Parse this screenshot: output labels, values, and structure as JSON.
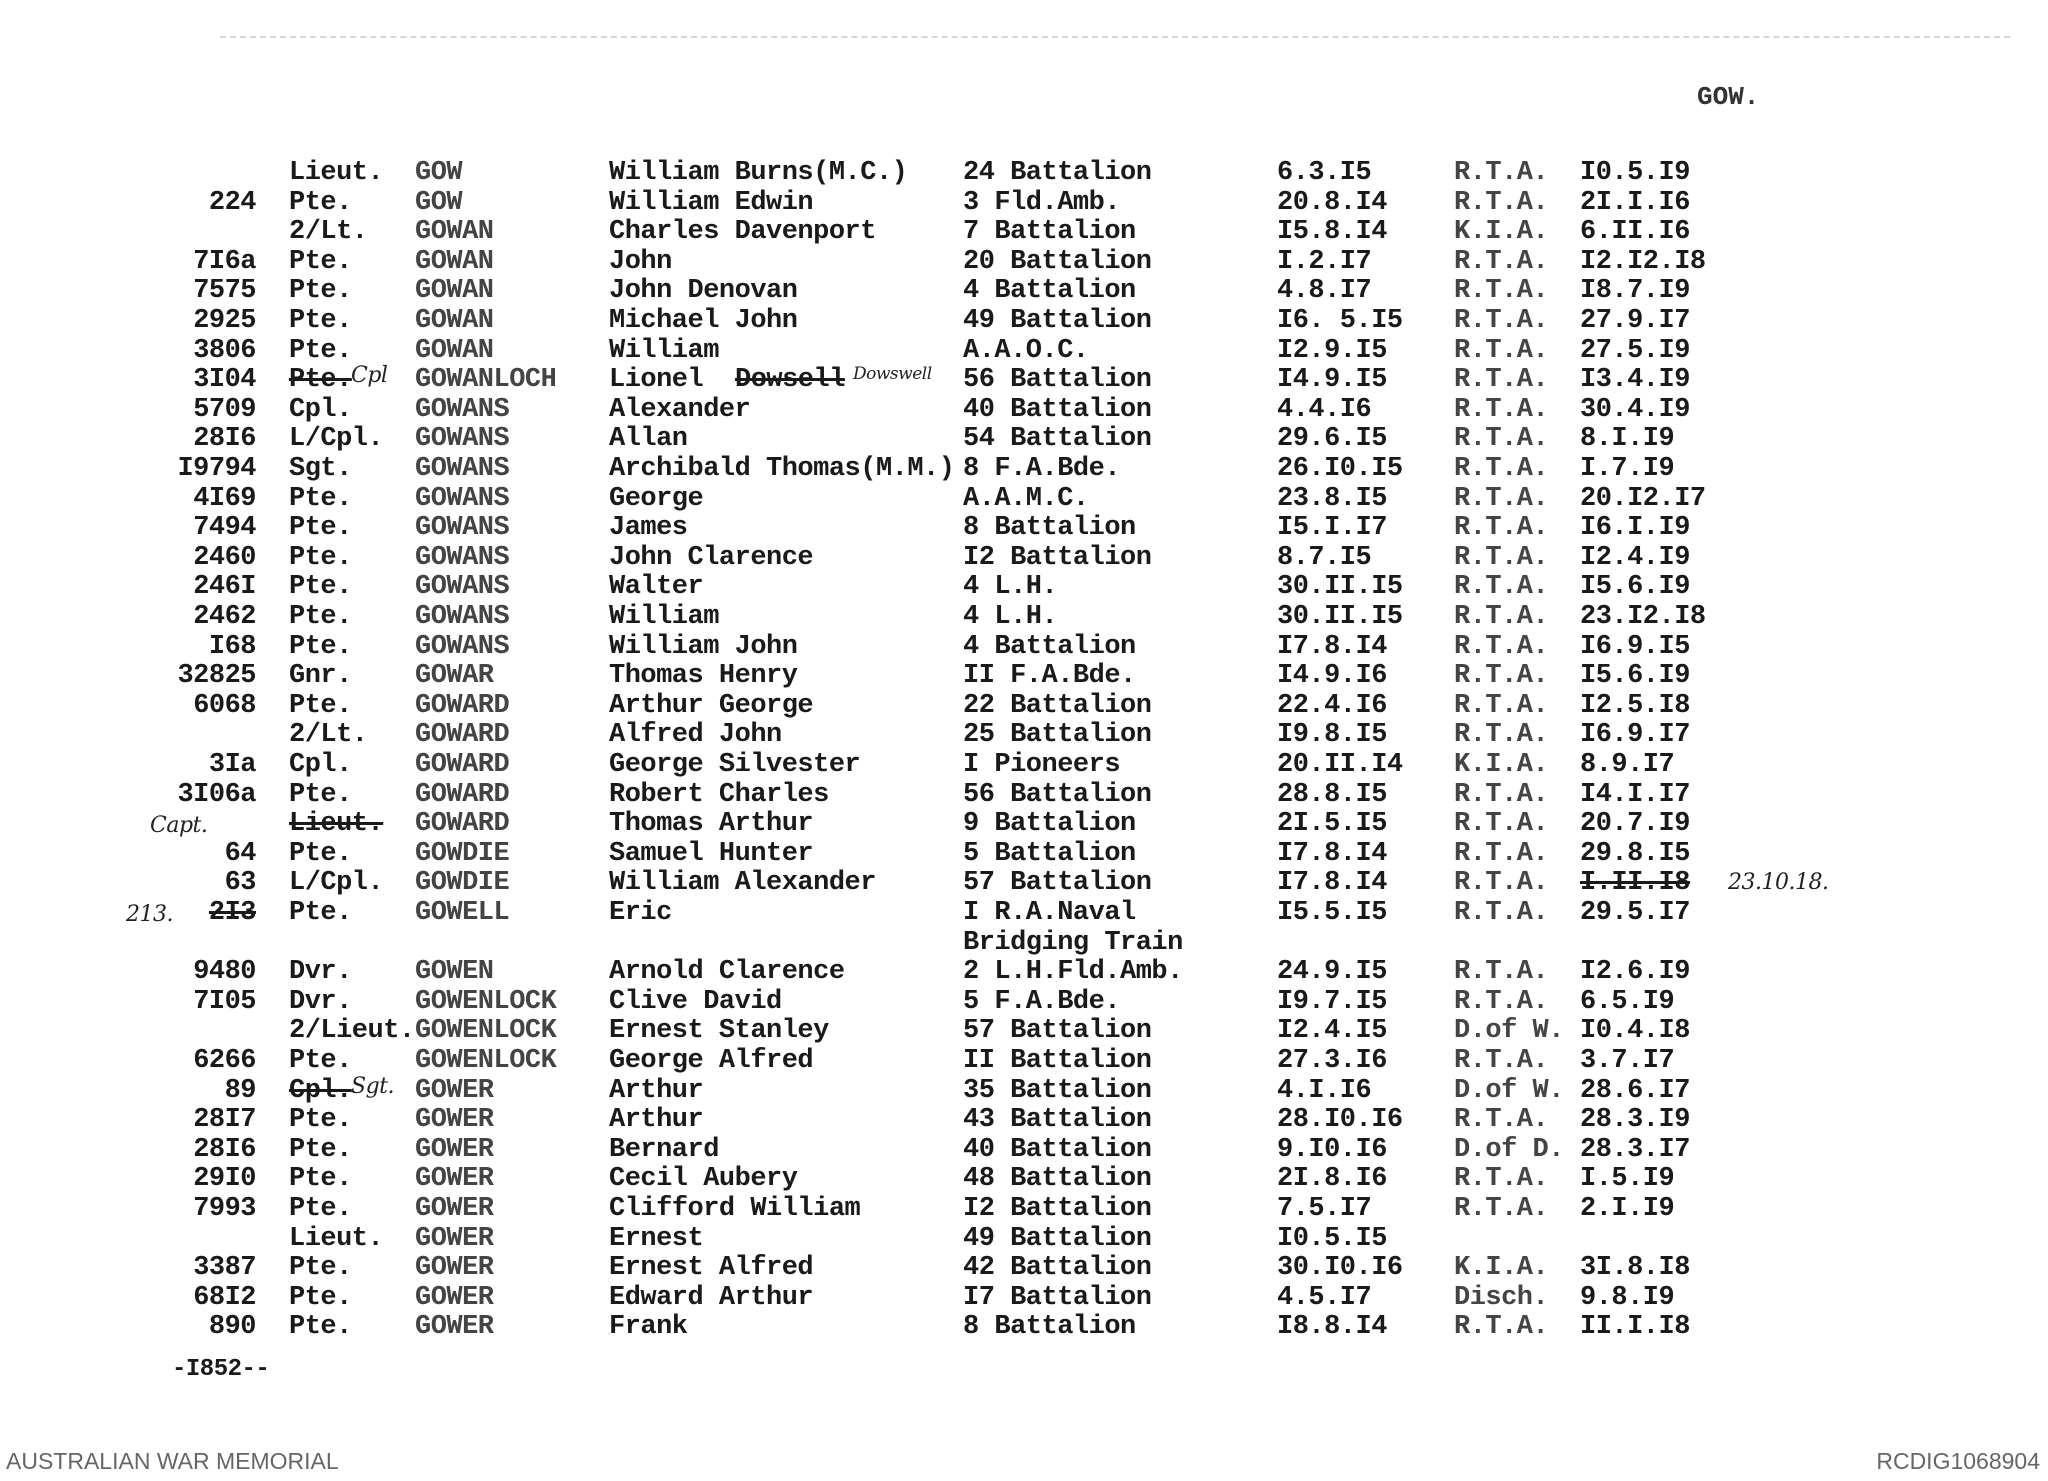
{
  "header": {
    "index_label": "GOW."
  },
  "rows": [
    {
      "num": "",
      "rank": "Lieut.",
      "surname": "GOW",
      "given": "William Burns(M.C.)",
      "unit": "24 Battalion",
      "enlisted": "6.3.I5",
      "fate": "R.T.A.",
      "date": "I0.5.I9"
    },
    {
      "num": "224",
      "rank": "Pte.",
      "surname": "GOW",
      "given": "William Edwin",
      "unit": "3 Fld.Amb.",
      "enlisted": "20.8.I4",
      "fate": "R.T.A.",
      "date": "2I.I.I6"
    },
    {
      "num": "",
      "rank": "2/Lt.",
      "surname": "GOWAN",
      "given": "Charles Davenport",
      "unit": "7 Battalion",
      "enlisted": "I5.8.I4",
      "fate": "K.I.A.",
      "date": "6.II.I6"
    },
    {
      "num": "7I6a",
      "rank": "Pte.",
      "surname": "GOWAN",
      "given": "John",
      "unit": "20 Battalion",
      "enlisted": "I.2.I7",
      "fate": "R.T.A.",
      "date": "I2.I2.I8"
    },
    {
      "num": "7575",
      "rank": "Pte.",
      "surname": "GOWAN",
      "given": "John Denovan",
      "unit": "4 Battalion",
      "enlisted": "4.8.I7",
      "fate": "R.T.A.",
      "date": "I8.7.I9"
    },
    {
      "num": "2925",
      "rank": "Pte.",
      "surname": "GOWAN",
      "given": "Michael John",
      "unit": "49 Battalion",
      "enlisted": "I6. 5.I5",
      "fate": "R.T.A.",
      "date": "27.9.I7"
    },
    {
      "num": "3806",
      "rank": "Pte.",
      "surname": "GOWAN",
      "given": "William",
      "unit": "A.A.O.C.",
      "enlisted": "I2.9.I5",
      "fate": "R.T.A.",
      "date": "27.5.I9"
    },
    {
      "num": "3I04",
      "rank": "Pte.",
      "rank_struck": true,
      "rank_hw": "Cpl",
      "surname": "GOWANLOCH",
      "given": "Lionel",
      "given_struck": "Dowsell",
      "given_hw": "Dowswell",
      "unit": "56 Battalion",
      "enlisted": "I4.9.I5",
      "fate": "R.T.A.",
      "date": "I3.4.I9"
    },
    {
      "num": "5709",
      "rank": "Cpl.",
      "surname": "GOWANS",
      "given": "Alexander",
      "unit": "40 Battalion",
      "enlisted": "4.4.I6",
      "fate": "R.T.A.",
      "date": "30.4.I9"
    },
    {
      "num": "28I6",
      "rank": "L/Cpl.",
      "surname": "GOWANS",
      "given": "Allan",
      "unit": "54 Battalion",
      "enlisted": "29.6.I5",
      "fate": "R.T.A.",
      "date": "8.I.I9"
    },
    {
      "num": "I9794",
      "rank": "Sgt.",
      "surname": "GOWANS",
      "given": "Archibald Thomas(M.M.)",
      "unit": "8 F.A.Bde.",
      "enlisted": "26.I0.I5",
      "fate": "R.T.A.",
      "date": "I.7.I9"
    },
    {
      "num": "4I69",
      "rank": "Pte.",
      "surname": "GOWANS",
      "given": "George",
      "unit": "A.A.M.C.",
      "enlisted": "23.8.I5",
      "fate": "R.T.A.",
      "date": "20.I2.I7"
    },
    {
      "num": "7494",
      "rank": "Pte.",
      "surname": "GOWANS",
      "given": "James",
      "unit": "8 Battalion",
      "enlisted": "I5.I.I7",
      "fate": "R.T.A.",
      "date": "I6.I.I9"
    },
    {
      "num": "2460",
      "rank": "Pte.",
      "surname": "GOWANS",
      "given": "John Clarence",
      "unit": "I2 Battalion",
      "enlisted": "8.7.I5",
      "fate": "R.T.A.",
      "date": "I2.4.I9"
    },
    {
      "num": "246I",
      "rank": "Pte.",
      "surname": "GOWANS",
      "given": "Walter",
      "unit": "4 L.H.",
      "enlisted": "30.II.I5",
      "fate": "R.T.A.",
      "date": "I5.6.I9"
    },
    {
      "num": "2462",
      "rank": "Pte.",
      "surname": "GOWANS",
      "given": "William",
      "unit": "4 L.H.",
      "enlisted": "30.II.I5",
      "fate": "R.T.A.",
      "date": "23.I2.I8"
    },
    {
      "num": "I68",
      "rank": "Pte.",
      "surname": "GOWANS",
      "given": "William John",
      "unit": "4 Battalion",
      "enlisted": "I7.8.I4",
      "fate": "R.T.A.",
      "date": "I6.9.I5"
    },
    {
      "num": "32825",
      "rank": "Gnr.",
      "surname": "GOWAR",
      "given": "Thomas Henry",
      "unit": "II F.A.Bde.",
      "enlisted": "I4.9.I6",
      "fate": "R.T.A.",
      "date": "I5.6.I9"
    },
    {
      "num": "6068",
      "rank": "Pte.",
      "surname": "GOWARD",
      "given": "Arthur George",
      "unit": "22 Battalion",
      "enlisted": "22.4.I6",
      "fate": "R.T.A.",
      "date": "I2.5.I8"
    },
    {
      "num": "",
      "rank": "2/Lt.",
      "surname": "GOWARD",
      "given": "Alfred John",
      "unit": "25 Battalion",
      "enlisted": "I9.8.I5",
      "fate": "R.T.A.",
      "date": "I6.9.I7"
    },
    {
      "num": "3Ia",
      "rank": "Cpl.",
      "surname": "GOWARD",
      "given": "George Silvester",
      "unit": "I Pioneers",
      "enlisted": "20.II.I4",
      "fate": "K.I.A.",
      "date": "8.9.I7"
    },
    {
      "num": "3I06a",
      "rank": "Pte.",
      "surname": "GOWARD",
      "given": "Robert Charles",
      "unit": "56 Battalion",
      "enlisted": "28.8.I5",
      "fate": "R.T.A.",
      "date": "I4.I.I7"
    },
    {
      "num": "",
      "num_hw": "Capt.",
      "rank": "Lieut.",
      "rank_struck": true,
      "surname": "GOWARD",
      "given": "Thomas Arthur",
      "unit": "9 Battalion",
      "enlisted": "2I.5.I5",
      "fate": "R.T.A.",
      "date": "20.7.I9"
    },
    {
      "num": "64",
      "rank": "Pte.",
      "surname": "GOWDIE",
      "given": "Samuel Hunter",
      "unit": "5 Battalion",
      "enlisted": "I7.8.I4",
      "fate": "R.T.A.",
      "date": "29.8.I5"
    },
    {
      "num": "63",
      "rank": "L/Cpl.",
      "surname": "GOWDIE",
      "given": "William Alexander",
      "unit": "57 Battalion",
      "enlisted": "I7.8.I4",
      "fate": "R.T.A.",
      "date": "I.II.I8",
      "date_struck": true,
      "date_hw": "23.10.18."
    },
    {
      "num": "2I3",
      "num_struck": true,
      "num_hw": "213.",
      "rank": "Pte.",
      "surname": "GOWELL",
      "given": "Eric",
      "unit": "I R.A.Naval",
      "unit2": "Bridging Train",
      "enlisted": "I5.5.I5",
      "fate": "R.T.A.",
      "date": "29.5.I7"
    },
    {
      "num": "9480",
      "rank": "Dvr.",
      "surname": "GOWEN",
      "given": "Arnold Clarence",
      "unit": "2 L.H.Fld.Amb.",
      "enlisted": "24.9.I5",
      "fate": "R.T.A.",
      "date": "I2.6.I9"
    },
    {
      "num": "7I05",
      "rank": "Dvr.",
      "surname": "GOWENLOCK",
      "given": "Clive David",
      "unit": "5 F.A.Bde.",
      "enlisted": "I9.7.I5",
      "fate": "R.T.A.",
      "date": "6.5.I9"
    },
    {
      "num": "",
      "rank": "2/Lieut.",
      "surname": "GOWENLOCK",
      "given": "Ernest Stanley",
      "unit": "57 Battalion",
      "enlisted": "I2.4.I5",
      "fate": "D.of W.",
      "date": "I0.4.I8"
    },
    {
      "num": "6266",
      "rank": "Pte.",
      "surname": "GOWENLOCK",
      "given": "George Alfred",
      "unit": "II Battalion",
      "enlisted": "27.3.I6",
      "fate": "R.T.A.",
      "date": "3.7.I7"
    },
    {
      "num": "89",
      "rank": "Cpl.",
      "rank_struck": true,
      "rank_hw": "Sgt.",
      "surname": "GOWER",
      "given": "Arthur",
      "unit": "35 Battalion",
      "enlisted": "4.I.I6",
      "fate": "D.of W.",
      "date": "28.6.I7"
    },
    {
      "num": "28I7",
      "rank": "Pte.",
      "surname": "GOWER",
      "given": "Arthur",
      "unit": "43 Battalion",
      "enlisted": "28.I0.I6",
      "fate": "R.T.A.",
      "date": "28.3.I9"
    },
    {
      "num": "28I6",
      "rank": "Pte.",
      "surname": "GOWER",
      "given": "Bernard",
      "unit": "40 Battalion",
      "enlisted": "9.I0.I6",
      "fate": "D.of D.",
      "date": "28.3.I7"
    },
    {
      "num": "29I0",
      "rank": "Pte.",
      "surname": "GOWER",
      "given": "Cecil Aubery",
      "unit": "48 Battalion",
      "enlisted": "2I.8.I6",
      "fate": "R.T.A.",
      "date": "I.5.I9"
    },
    {
      "num": "7993",
      "rank": "Pte.",
      "surname": "GOWER",
      "given": "Clifford William",
      "unit": "I2 Battalion",
      "enlisted": "7.5.I7",
      "fate": "R.T.A.",
      "date": "2.I.I9"
    },
    {
      "num": "",
      "rank": "Lieut.",
      "surname": "GOWER",
      "given": "Ernest",
      "unit": "49 Battalion",
      "enlisted": "I0.5.I5",
      "fate": "",
      "date": ""
    },
    {
      "num": "3387",
      "rank": "Pte.",
      "surname": "GOWER",
      "given": "Ernest Alfred",
      "unit": "42 Battalion",
      "enlisted": "30.I0.I6",
      "fate": "K.I.A.",
      "date": "3I.8.I8"
    },
    {
      "num": "68I2",
      "rank": "Pte.",
      "surname": "GOWER",
      "given": "Edward Arthur",
      "unit": "I7 Battalion",
      "enlisted": "4.5.I7",
      "fate": "Disch.",
      "date": "9.8.I9"
    },
    {
      "num": "890",
      "rank": "Pte.",
      "surname": "GOWER",
      "given": "Frank",
      "unit": "8 Battalion",
      "enlisted": "I8.8.I4",
      "fate": "R.T.A.",
      "date": "II.I.I8"
    }
  ],
  "tally": "-I852--",
  "footer": {
    "left": "AUSTRALIAN WAR MEMORIAL",
    "right": "RCDIG1068904"
  }
}
